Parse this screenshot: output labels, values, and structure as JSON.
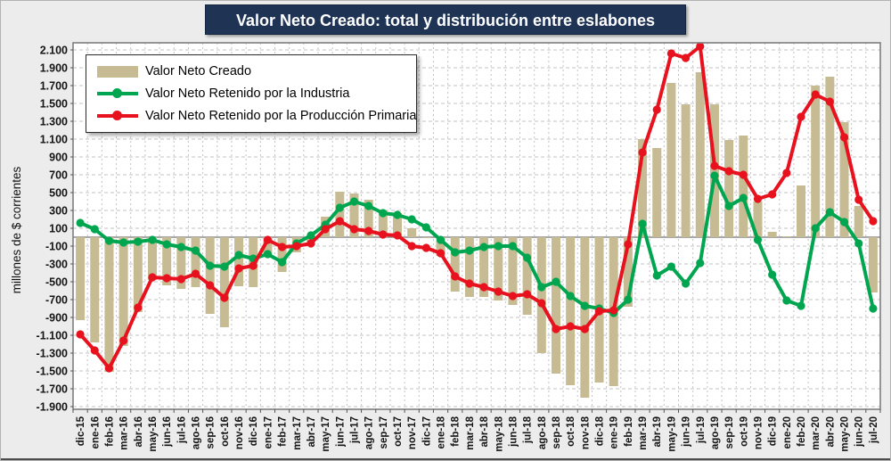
{
  "title": "Valor Neto Creado: total y distribución entre eslabones",
  "y_axis_label": "millones de $ corrientes",
  "legend": {
    "items": [
      {
        "label": "Valor Neto Creado",
        "swatch": "bar-swatch",
        "color": "#C6BB92"
      },
      {
        "label": "Valor Neto Retenido por la Industria",
        "swatch": "line-swatch",
        "color": "#00A64F"
      },
      {
        "label": "Valor Neto Retenido por la Producción Primaria",
        "swatch": "line-swatch",
        "color": "#E8111E"
      }
    ]
  },
  "colors": {
    "title_bg": "#1F3455",
    "title_text": "#FFFFFF",
    "background": "#ECECEC",
    "plot_bg": "#FFFFFF",
    "gridline": "#C3C3C3",
    "zero_line": "#8C8C8C",
    "plot_border": "#7F7F7F",
    "bar": "#C6BB92",
    "industria": "#00A64F",
    "primaria": "#E8111E",
    "axis_text": "#141414"
  },
  "chart_data": {
    "type": "bar",
    "subtype": "bar-plus-lines",
    "title": "Valor Neto Creado: total y distribución entre eslabones",
    "ylabel": "millones de $ corrientes",
    "xlabel": "",
    "ylim": [
      -1900,
      2100
    ],
    "ytick_step": 200,
    "grid": "dashed",
    "legend_position": "top-left",
    "categories": [
      "dic-15",
      "ene-16",
      "feb-16",
      "mar-16",
      "abr-16",
      "may-16",
      "jun-16",
      "jul-16",
      "ago-16",
      "sep-16",
      "oct-16",
      "nov-16",
      "dic-16",
      "ene-17",
      "feb-17",
      "mar-17",
      "abr-17",
      "may-17",
      "jun-17",
      "jul-17",
      "ago-17",
      "sep-17",
      "oct-17",
      "nov-17",
      "dic-17",
      "ene-18",
      "feb-18",
      "mar-18",
      "abr-18",
      "may-18",
      "jun-18",
      "jul-18",
      "ago-18",
      "sep-18",
      "oct-18",
      "nov-18",
      "dic-18",
      "ene-19",
      "feb-19",
      "mar-19",
      "abr-19",
      "may-19",
      "jun-19",
      "jul-19",
      "ago-19",
      "sep-19",
      "oct-19",
      "nov-19",
      "dic-19",
      "ene-20",
      "feb-20",
      "mar-20",
      "abr-20",
      "may-20",
      "jun-20",
      "jul-20"
    ],
    "series": [
      {
        "name": "Valor Neto Creado",
        "type": "bar",
        "color": "#C6BB92",
        "values": [
          -930,
          -1180,
          -1510,
          -1220,
          -840,
          -480,
          -540,
          -580,
          -560,
          -860,
          -1010,
          -550,
          -560,
          -220,
          -390,
          -170,
          -50,
          230,
          510,
          490,
          420,
          300,
          270,
          100,
          -10,
          -210,
          -610,
          -670,
          -670,
          -710,
          -760,
          -870,
          -1300,
          -1530,
          -1660,
          -1800,
          -1630,
          -1670,
          -780,
          1100,
          1000,
          1730,
          1490,
          1850,
          1490,
          1090,
          1140,
          400,
          60,
          10,
          580,
          1700,
          1800,
          1290,
          350,
          -620
        ]
      },
      {
        "name": "Valor Neto Retenido por la Industria",
        "type": "line",
        "color": "#00A64F",
        "values": [
          160,
          90,
          -40,
          -60,
          -50,
          -30,
          -80,
          -110,
          -150,
          -320,
          -330,
          -200,
          -240,
          -190,
          -280,
          -70,
          20,
          140,
          330,
          400,
          350,
          270,
          250,
          200,
          110,
          -30,
          -170,
          -150,
          -110,
          -100,
          -100,
          -230,
          -560,
          -500,
          -660,
          -770,
          -800,
          -850,
          -700,
          150,
          -430,
          -330,
          -520,
          -290,
          690,
          350,
          440,
          -30,
          -420,
          -710,
          -770,
          100,
          280,
          170,
          -70,
          -800
        ]
      },
      {
        "name": "Valor Neto Retenido por la Producción Primaria",
        "type": "line",
        "color": "#E8111E",
        "values": [
          -1090,
          -1270,
          -1470,
          -1160,
          -790,
          -450,
          -460,
          -470,
          -410,
          -540,
          -680,
          -350,
          -320,
          -30,
          -110,
          -100,
          -70,
          90,
          180,
          90,
          70,
          30,
          20,
          -100,
          -120,
          -180,
          -440,
          -520,
          -560,
          -610,
          -660,
          -640,
          -740,
          -1030,
          -1000,
          -1030,
          -830,
          -820,
          -80,
          950,
          1430,
          2060,
          2010,
          2140,
          800,
          740,
          700,
          430,
          480,
          720,
          1350,
          1600,
          1520,
          1120,
          420,
          180
        ]
      }
    ]
  }
}
